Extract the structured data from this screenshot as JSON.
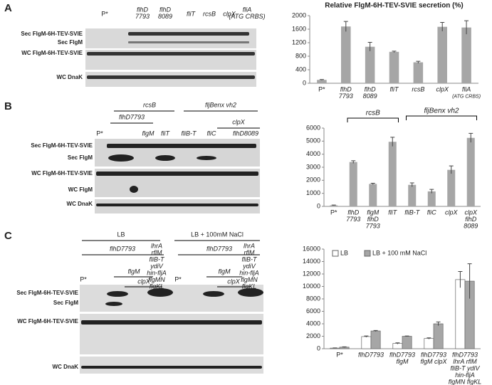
{
  "panels": [
    "A",
    "B",
    "C"
  ],
  "blots": [
    {
      "labels": [
        [
          "P*"
        ],
        [
          "flhD",
          "7793"
        ],
        [
          "flhD",
          "8089"
        ],
        [
          "fliT"
        ],
        [
          "rcsB"
        ],
        [
          "clpX"
        ],
        [
          "fliA",
          "(ATG CRBS)"
        ]
      ],
      "rows": [
        "Sec FlgM-6H-TEV-SVIE",
        "Sec FlgM",
        "WC FlgM-6H-TEV-SVIE",
        "WC DnaK"
      ]
    },
    {
      "labels": [
        [
          "rcsB"
        ],
        [
          "flhD7793"
        ],
        [
          "fljBenx vh2"
        ],
        [
          "clpX"
        ],
        [
          "P*"
        ],
        [
          "flgM"
        ],
        [
          "fliT"
        ],
        [
          "fliB-T"
        ],
        [
          "fliC"
        ],
        [
          "flhD8089"
        ]
      ],
      "rows": [
        "Sec FlgM-6H-TEV-SVIE",
        "Sec FlgM",
        "WC FlgM-6H-TEV-SVIE",
        "WC FlgM",
        "WC DnaK"
      ]
    },
    {
      "labels": [
        [
          "LB"
        ],
        [
          "flhD7793"
        ],
        [
          "LB + 100mM NaCl"
        ],
        [
          "flhD7793"
        ],
        [
          "P*"
        ],
        [
          "flgM"
        ],
        [
          "clpX"
        ],
        [
          "lhrA",
          "rflM",
          "fliB-T",
          "ydiV",
          "hin-fljA",
          "flgMN",
          "flgKL"
        ],
        [
          "P*"
        ],
        [
          "flgM"
        ],
        [
          "clpX"
        ],
        [
          "lhrA",
          "rflM",
          "fliB-T",
          "ydiV",
          "hin-fljA",
          "flgMN",
          "flgKL"
        ]
      ],
      "rows": [
        "Sec FlgM-6H-TEV-SVIE",
        "Sec FlgM",
        "WC FlgM-6H-TEV-SVIE",
        "WC DnaK"
      ]
    }
  ],
  "chart_data": [
    {
      "type": "bar",
      "title": "Relative FlgM-6H-TEV-SVIE secretion (%)",
      "categories": [
        [
          "P*"
        ],
        [
          "flhD",
          "7793"
        ],
        [
          "flhD",
          "8089"
        ],
        [
          "fliT"
        ],
        [
          "rcsB"
        ],
        [
          "clpX"
        ],
        [
          "fliA",
          "(ATG CRBS)"
        ]
      ],
      "values": [
        100,
        1680,
        1080,
        930,
        620,
        1670,
        1650
      ],
      "errors": [
        10,
        150,
        130,
        20,
        30,
        130,
        200
      ],
      "color": "#a6a6a6",
      "ylim": [
        0,
        2000
      ],
      "yticks": [
        0,
        400,
        800,
        1200,
        1600,
        2000
      ]
    },
    {
      "type": "bar",
      "categories": [
        [
          "P*"
        ],
        [
          "flhD",
          "7793"
        ],
        [
          "flgM",
          "flhD",
          "7793"
        ],
        [
          "fliT"
        ],
        [
          "fliB-T"
        ],
        [
          "fliC"
        ],
        [
          "clpX"
        ],
        [
          "clpX",
          "flhD",
          "8089"
        ]
      ],
      "values": [
        80,
        3400,
        1720,
        4950,
        1650,
        1150,
        2800,
        5250
      ],
      "errors": [
        20,
        100,
        50,
        350,
        150,
        150,
        300,
        350
      ],
      "color": "#a6a6a6",
      "annotations": [
        "rcsB",
        "fljBenx vh2"
      ],
      "ylim": [
        0,
        6000
      ],
      "yticks": [
        0,
        1000,
        2000,
        3000,
        4000,
        5000,
        6000
      ]
    },
    {
      "type": "bar",
      "categories": [
        [
          "P*"
        ],
        [
          "flhD7793"
        ],
        [
          "flhD7793",
          "flgM"
        ],
        [
          "flhD7793",
          "flgM clpX"
        ],
        [
          "flhD7793",
          "lhrA rflM",
          "fliB-T ydiV",
          "hin-fljA",
          "flgMN flgKL"
        ]
      ],
      "series": [
        {
          "name": "LB",
          "color": "#ffffff",
          "values": [
            100,
            1950,
            850,
            1650,
            11100
          ],
          "errors": [
            30,
            100,
            100,
            100,
            1300
          ]
        },
        {
          "name": "LB + 100 mM NaCl",
          "color": "#a6a6a6",
          "values": [
            250,
            2850,
            2000,
            4000,
            10850
          ],
          "errors": [
            50,
            80,
            50,
            300,
            2800
          ]
        }
      ],
      "legend": "upper left",
      "ylim": [
        0,
        16000
      ],
      "yticks": [
        0,
        2000,
        4000,
        6000,
        8000,
        10000,
        12000,
        14000,
        16000
      ]
    }
  ]
}
